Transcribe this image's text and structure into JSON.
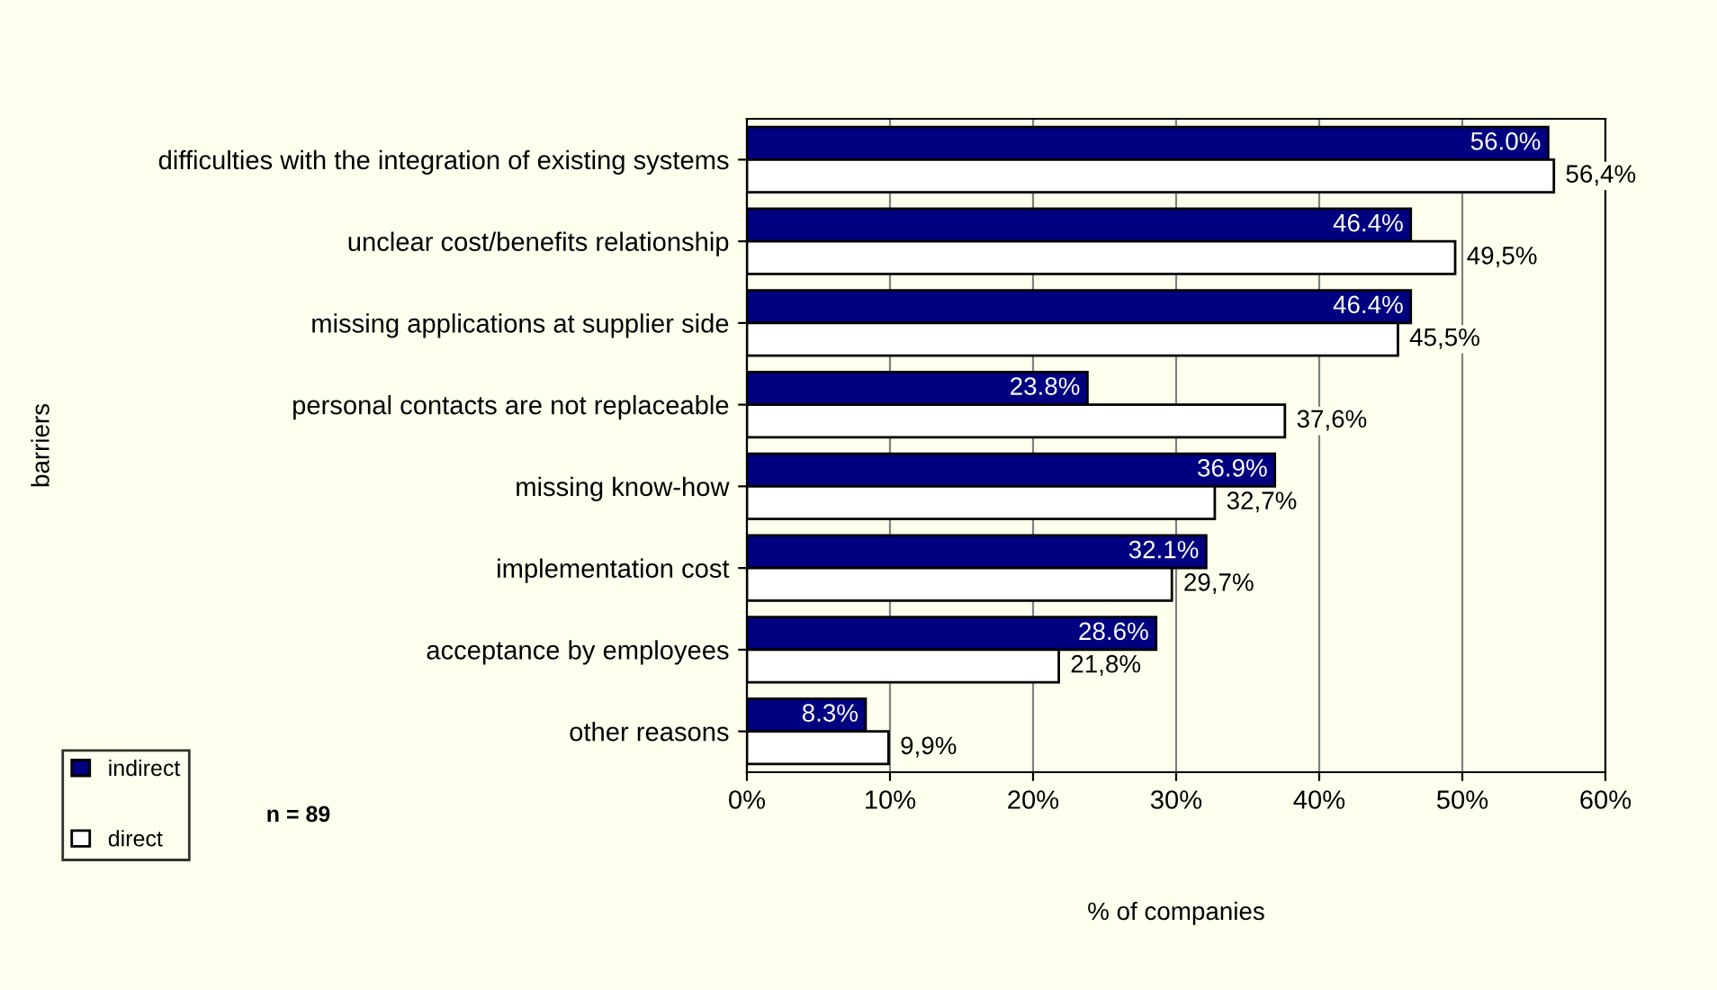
{
  "chart_data": {
    "type": "bar",
    "orientation": "horizontal",
    "ylabel": "barriers",
    "xlabel": "% of companies",
    "categories": [
      "difficulties with the integration of existing systems",
      "unclear cost/benefits relationship",
      "missing applications at supplier side",
      "personal contacts are not replaceable",
      "missing know-how",
      "implementation cost",
      "acceptance by employees",
      "other reasons"
    ],
    "series": [
      {
        "name": "indirect",
        "color": "#000080",
        "values": [
          56.0,
          46.4,
          46.4,
          23.8,
          36.9,
          32.1,
          28.6,
          8.3
        ],
        "value_labels": [
          "56.0%",
          "46.4%",
          "46.4%",
          "23.8%",
          "36.9%",
          "32.1%",
          "28.6%",
          "8.3%"
        ]
      },
      {
        "name": "direct",
        "color": "#ffffff",
        "values": [
          56.4,
          49.5,
          45.5,
          37.6,
          32.7,
          29.7,
          21.8,
          9.9
        ],
        "value_labels": [
          "56,4%",
          "49,5%",
          "45,5%",
          "37,6%",
          "32,7%",
          "29,7%",
          "21,8%",
          "9,9%"
        ]
      }
    ],
    "xlim": [
      0,
      60
    ],
    "xticks": [
      {
        "value": 0,
        "label": "0%"
      },
      {
        "value": 10,
        "label": "10%"
      },
      {
        "value": 20,
        "label": "20%"
      },
      {
        "value": 30,
        "label": "30%"
      },
      {
        "value": 40,
        "label": "40%"
      },
      {
        "value": 50,
        "label": "50%"
      },
      {
        "value": 60,
        "label": "60%"
      }
    ],
    "grid": "x",
    "legend": "bottom left",
    "annotations": [
      "n = 89"
    ]
  }
}
